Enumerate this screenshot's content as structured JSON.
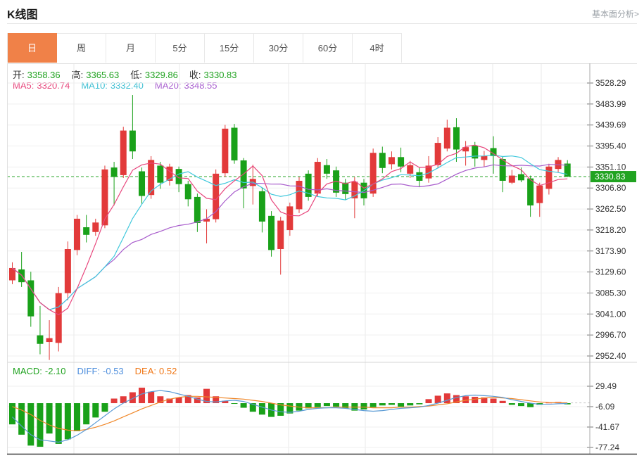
{
  "header": {
    "title": "K线图",
    "link": "基本面分析>"
  },
  "tabs": {
    "items": [
      "日",
      "周",
      "月",
      "5分",
      "15分",
      "30分",
      "60分",
      "4时"
    ],
    "names": [
      "tab-day",
      "tab-week",
      "tab-month",
      "tab-5min",
      "tab-15min",
      "tab-30min",
      "tab-60min",
      "tab-4hour"
    ],
    "active": 0
  },
  "legend": {
    "ohlc": [
      {
        "label": "开:",
        "value": "3358.36"
      },
      {
        "label": "高:",
        "value": "3365.63"
      },
      {
        "label": "低:",
        "value": "3329.86"
      },
      {
        "label": "收:",
        "value": "3330.83"
      }
    ],
    "ma": [
      {
        "label": "MA5:",
        "value": "3320.74",
        "color": "#e8477d"
      },
      {
        "label": "MA10:",
        "value": "3332.40",
        "color": "#3fc0d4"
      },
      {
        "label": "MA20:",
        "value": "3348.55",
        "color": "#a95fd0"
      }
    ],
    "macd": [
      {
        "label": "MACD:",
        "value": "-2.10",
        "color": "#21a321"
      },
      {
        "label": "DIFF:",
        "value": "-0.53",
        "color": "#4f8fdd"
      },
      {
        "label": "DEA:",
        "value": "0.52",
        "color": "#f07818"
      }
    ]
  },
  "colors": {
    "up": "#e23a3a",
    "down": "#19a119",
    "ma5": "#e8477d",
    "ma10": "#41c8dc",
    "ma20": "#a85ccc",
    "diff": "#5b9bd5",
    "dea": "#f0882a",
    "grid": "#efefef",
    "vgrid": "#e9e9e9",
    "axis": "#aaaaaa",
    "tick_text": "#333333",
    "price_line": "#2aa52a",
    "badge_bg": "#21a321",
    "badge_text": "#ffffff",
    "divider": "#d5d5d5",
    "bottom_border": "#3a3a3a",
    "top_border": "#e0e0e0",
    "end_dash": "#c8c8c8"
  },
  "chart_data": {
    "type": "candlestick+macd",
    "title": "K线图",
    "current_price": 3330.83,
    "y_axis_main": {
      "ticks": [
        "3528.29",
        "3483.99",
        "3439.69",
        "3395.40",
        "3351.10",
        "3306.80",
        "3262.50",
        "3218.20",
        "3173.90",
        "3129.60",
        "3085.30",
        "3041.00",
        "2996.70",
        "2952.40"
      ]
    },
    "v_gridlines": [
      95,
      245,
      400,
      509,
      690,
      759
    ],
    "ma_periods": [
      5,
      10,
      20
    ],
    "candle_format": [
      "open",
      "high",
      "low",
      "close"
    ],
    "candles": [
      [
        3112,
        3150,
        3104,
        3138
      ],
      [
        3135,
        3172,
        3098,
        3108
      ],
      [
        3112,
        3130,
        3014,
        3036
      ],
      [
        2996,
        3058,
        2956,
        2978
      ],
      [
        2982,
        3028,
        2944,
        2990
      ],
      [
        2980,
        3098,
        2962,
        3085
      ],
      [
        3085,
        3194,
        3070,
        3178
      ],
      [
        3176,
        3250,
        3165,
        3242
      ],
      [
        3224,
        3250,
        3192,
        3208
      ],
      [
        3214,
        3242,
        3206,
        3234
      ],
      [
        3228,
        3354,
        3222,
        3346
      ],
      [
        3350,
        3362,
        3270,
        3330
      ],
      [
        3334,
        3436,
        3328,
        3428
      ],
      [
        3428,
        3503,
        3368,
        3384
      ],
      [
        3342,
        3350,
        3272,
        3290
      ],
      [
        3292,
        3374,
        3284,
        3366
      ],
      [
        3354,
        3362,
        3305,
        3318
      ],
      [
        3322,
        3358,
        3312,
        3352
      ],
      [
        3347,
        3352,
        3298,
        3315
      ],
      [
        3315,
        3322,
        3268,
        3283
      ],
      [
        3288,
        3295,
        3214,
        3233
      ],
      [
        3236,
        3262,
        3190,
        3242
      ],
      [
        3241,
        3346,
        3234,
        3337
      ],
      [
        3338,
        3440,
        3330,
        3432
      ],
      [
        3434,
        3442,
        3358,
        3365
      ],
      [
        3365,
        3370,
        3264,
        3306
      ],
      [
        3311,
        3356,
        3272,
        3326
      ],
      [
        3300,
        3308,
        3213,
        3236
      ],
      [
        3248,
        3258,
        3162,
        3176
      ],
      [
        3178,
        3246,
        3124,
        3238
      ],
      [
        3218,
        3276,
        3206,
        3268
      ],
      [
        3262,
        3330,
        3254,
        3322
      ],
      [
        3337,
        3344,
        3280,
        3288
      ],
      [
        3295,
        3370,
        3288,
        3362
      ],
      [
        3355,
        3368,
        3326,
        3337
      ],
      [
        3344,
        3352,
        3288,
        3297
      ],
      [
        3318,
        3326,
        3282,
        3294
      ],
      [
        3285,
        3330,
        3243,
        3320
      ],
      [
        3318,
        3326,
        3270,
        3285
      ],
      [
        3295,
        3390,
        3288,
        3381
      ],
      [
        3381,
        3394,
        3338,
        3349
      ],
      [
        3357,
        3384,
        3346,
        3372
      ],
      [
        3372,
        3392,
        3340,
        3352
      ],
      [
        3337,
        3364,
        3328,
        3355
      ],
      [
        3340,
        3350,
        3310,
        3322
      ],
      [
        3327,
        3374,
        3318,
        3354
      ],
      [
        3355,
        3414,
        3348,
        3402
      ],
      [
        3390,
        3451,
        3384,
        3434
      ],
      [
        3435,
        3454,
        3362,
        3388
      ],
      [
        3384,
        3406,
        3354,
        3393
      ],
      [
        3396,
        3404,
        3352,
        3369
      ],
      [
        3366,
        3385,
        3352,
        3374
      ],
      [
        3391,
        3416,
        3337,
        3374
      ],
      [
        3368,
        3374,
        3298,
        3322
      ],
      [
        3318,
        3345,
        3315,
        3333
      ],
      [
        3336,
        3350,
        3319,
        3323
      ],
      [
        3327,
        3333,
        3246,
        3270
      ],
      [
        3275,
        3318,
        3246,
        3312
      ],
      [
        3305,
        3358,
        3293,
        3352
      ],
      [
        3347,
        3372,
        3340,
        3366
      ],
      [
        3358.36,
        3365.63,
        3329.86,
        3330.83
      ]
    ],
    "macd": {
      "ticks": [
        "29.49",
        "-6.09",
        "-41.67",
        "-77.24"
      ],
      "hist": [
        -37,
        -55,
        -74,
        -76,
        -53,
        -71,
        -63,
        -49,
        -37,
        -25,
        -15,
        8,
        12,
        19,
        27,
        20,
        12,
        8,
        10,
        14,
        10,
        25,
        12,
        4,
        -1,
        -8,
        -15,
        -20,
        -24,
        -22,
        -18,
        -13,
        -9,
        -7,
        -5,
        -6,
        -9,
        -13,
        -11,
        -7,
        -4,
        -3,
        -6,
        -4,
        -2,
        7,
        13,
        17,
        14,
        12,
        11,
        10,
        8,
        4,
        -3,
        -5,
        -7,
        -3,
        1,
        2,
        -2.1
      ],
      "diff": [
        -24,
        -40,
        -55,
        -64,
        -66,
        -68,
        -64,
        -56,
        -46,
        -34,
        -22,
        -10,
        0,
        8,
        16,
        20,
        22,
        20,
        16,
        12,
        7,
        3,
        2,
        4,
        5,
        3,
        -2,
        -7,
        -12,
        -15,
        -16,
        -14,
        -11,
        -9,
        -8,
        -8,
        -9,
        -11,
        -13,
        -14,
        -13,
        -11,
        -9,
        -8,
        -7,
        -4,
        0,
        5,
        10,
        13,
        14,
        13,
        12,
        10,
        6,
        3,
        0,
        -2,
        -2,
        -1,
        -0.53
      ],
      "dea": [
        -6,
        -12,
        -20,
        -30,
        -38,
        -44,
        -47,
        -48,
        -46,
        -42,
        -37,
        -31,
        -24,
        -17,
        -10,
        -4,
        2,
        7,
        10,
        12,
        12,
        11,
        10,
        9,
        8,
        7,
        5,
        3,
        0,
        -3,
        -5,
        -7,
        -8,
        -8,
        -8,
        -7,
        -7,
        -7,
        -7,
        -8,
        -8,
        -8,
        -7,
        -7,
        -6,
        -5,
        -3,
        -1,
        2,
        5,
        7,
        9,
        10,
        9,
        8,
        6,
        4,
        2,
        1,
        0.6,
        0.52
      ]
    }
  }
}
